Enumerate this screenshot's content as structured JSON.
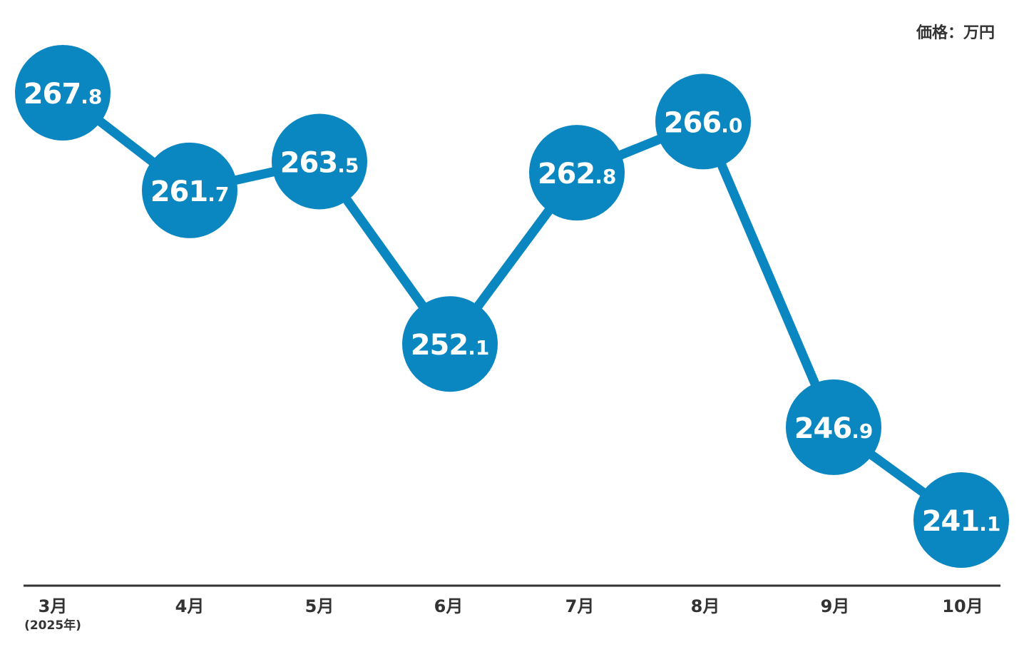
{
  "chart_data": {
    "type": "line",
    "title": "",
    "unit_label": "価格：万円",
    "categories": [
      "3月",
      "4月",
      "5月",
      "6月",
      "7月",
      "8月",
      "9月",
      "10月"
    ],
    "first_category_note": "(2025年)",
    "values": [
      267.8,
      261.7,
      263.5,
      252.1,
      262.8,
      266.0,
      246.9,
      241.1
    ],
    "value_labels": [
      {
        "int": "267",
        "dec": ".8"
      },
      {
        "int": "261",
        "dec": ".7"
      },
      {
        "int": "263",
        "dec": ".5"
      },
      {
        "int": "252",
        "dec": ".1"
      },
      {
        "int": "262",
        "dec": ".8"
      },
      {
        "int": "266",
        "dec": ".0"
      },
      {
        "int": "246",
        "dec": ".9"
      },
      {
        "int": "241",
        "dec": ".1"
      }
    ],
    "ylim": [
      241.1,
      267.8
    ],
    "grid": false,
    "legend": "none",
    "colors": {
      "series": "#0a86c0",
      "axis": "#333333",
      "label_text": "#ffffff"
    }
  }
}
